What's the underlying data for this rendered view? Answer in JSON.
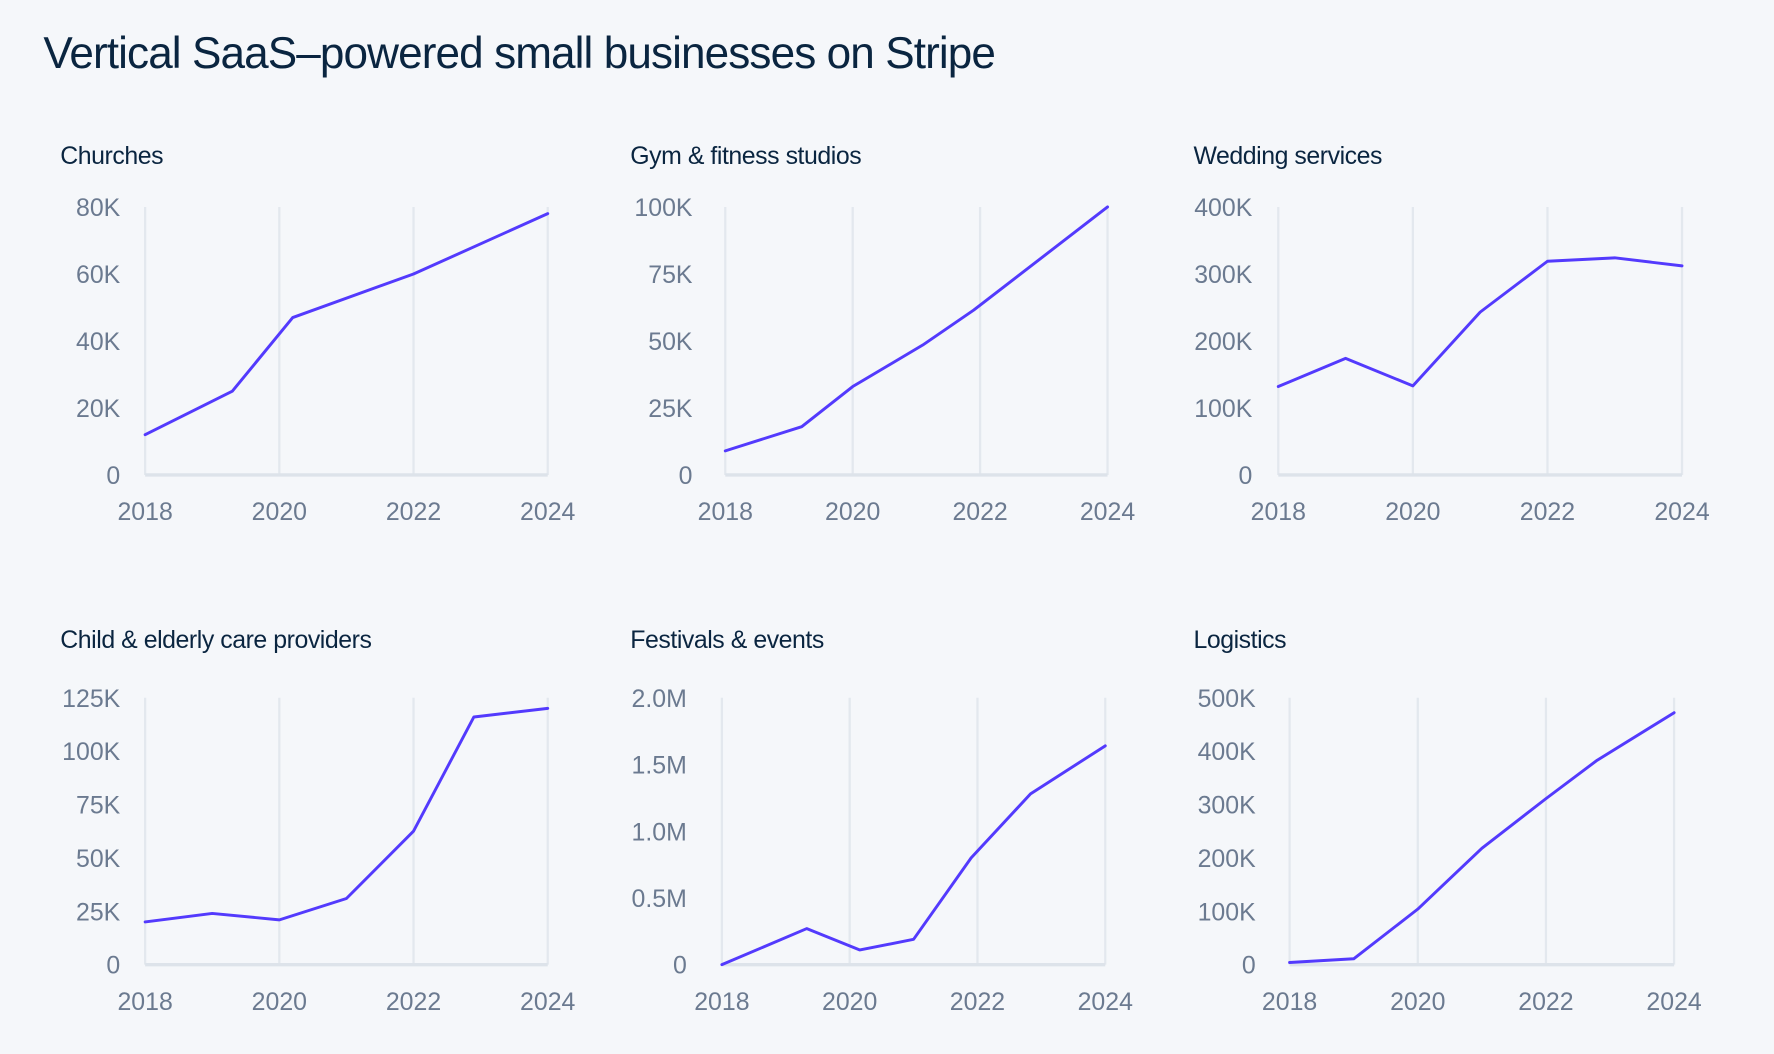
{
  "title": "Vertical SaaS–powered small businesses on Stripe",
  "colors": {
    "background": "#f5f7fa",
    "line": "#533afd",
    "grid": "#e3e8ee",
    "title": "#0a2540",
    "tick": "#6b7a90"
  },
  "chart_data": [
    {
      "type": "line",
      "title": "Churches",
      "xlim": [
        2018,
        2024
      ],
      "ylim": [
        0,
        80000
      ],
      "xticks": [
        2018,
        2020,
        2022,
        2024
      ],
      "xtick_labels": [
        "2018",
        "2020",
        "2022",
        "2024"
      ],
      "yticks": [
        0,
        20000,
        40000,
        60000,
        80000
      ],
      "ytick_labels": [
        "0",
        "20K",
        "40K",
        "60K",
        "80K"
      ],
      "grid": "vertical",
      "x": [
        2018,
        2019.3,
        2020.2,
        2022,
        2024
      ],
      "y": [
        12000,
        25000,
        47000,
        60000,
        78000
      ]
    },
    {
      "type": "line",
      "title": "Gym & fitness studios",
      "xlim": [
        2018,
        2024
      ],
      "ylim": [
        0,
        100000
      ],
      "xticks": [
        2018,
        2020,
        2022,
        2024
      ],
      "xtick_labels": [
        "2018",
        "2020",
        "2022",
        "2024"
      ],
      "yticks": [
        0,
        25000,
        50000,
        75000,
        100000
      ],
      "ytick_labels": [
        "0",
        "25K",
        "50K",
        "75K",
        "100K"
      ],
      "grid": "vertical",
      "x": [
        2018,
        2019.2,
        2020,
        2021.1,
        2021.9,
        2024
      ],
      "y": [
        9000,
        18000,
        33000,
        48500,
        61500,
        100000
      ]
    },
    {
      "type": "line",
      "title": "Wedding services",
      "xlim": [
        2018,
        2024
      ],
      "ylim": [
        0,
        400000
      ],
      "xticks": [
        2018,
        2020,
        2022,
        2024
      ],
      "xtick_labels": [
        "2018",
        "2020",
        "2022",
        "2024"
      ],
      "yticks": [
        0,
        100000,
        200000,
        300000,
        400000
      ],
      "ytick_labels": [
        "0",
        "100K",
        "200K",
        "300K",
        "400K"
      ],
      "grid": "vertical",
      "x": [
        2018,
        2019,
        2020,
        2021,
        2022,
        2023,
        2024
      ],
      "y": [
        132000,
        174000,
        133000,
        243000,
        319000,
        324000,
        312000
      ]
    },
    {
      "type": "line",
      "title": "Child & elderly care providers",
      "xlim": [
        2018,
        2024
      ],
      "ylim": [
        0,
        125000
      ],
      "xticks": [
        2018,
        2020,
        2022,
        2024
      ],
      "xtick_labels": [
        "2018",
        "2020",
        "2022",
        "2024"
      ],
      "yticks": [
        0,
        25000,
        50000,
        75000,
        100000,
        125000
      ],
      "ytick_labels": [
        "0",
        "25K",
        "50K",
        "75K",
        "100K",
        "125K"
      ],
      "grid": "vertical",
      "x": [
        2018,
        2019,
        2020,
        2021,
        2022,
        2022.9,
        2024
      ],
      "y": [
        20000,
        24000,
        21000,
        31000,
        62500,
        116000,
        120000
      ]
    },
    {
      "type": "line",
      "title": "Festivals & events",
      "xlim": [
        2018,
        2024
      ],
      "ylim": [
        0,
        2000000
      ],
      "xticks": [
        2018,
        2020,
        2022,
        2024
      ],
      "xtick_labels": [
        "2018",
        "2020",
        "2022",
        "2024"
      ],
      "yticks": [
        0,
        500000,
        1000000,
        1500000,
        2000000
      ],
      "ytick_labels": [
        "0",
        "0.5M",
        "1.0M",
        "1.5M",
        "2.0M"
      ],
      "grid": "vertical",
      "x": [
        2018,
        2019.33,
        2020.16,
        2021,
        2021.9,
        2022.83,
        2024
      ],
      "y": [
        0,
        270000,
        110000,
        190000,
        800000,
        1280000,
        1640000
      ]
    },
    {
      "type": "line",
      "title": "Logistics",
      "xlim": [
        2018,
        2024
      ],
      "ylim": [
        0,
        500000
      ],
      "xticks": [
        2018,
        2020,
        2022,
        2024
      ],
      "xtick_labels": [
        "2018",
        "2020",
        "2022",
        "2024"
      ],
      "yticks": [
        0,
        100000,
        200000,
        300000,
        400000,
        500000
      ],
      "ytick_labels": [
        "0",
        "100K",
        "200K",
        "300K",
        "400K",
        "500K"
      ],
      "grid": "vertical",
      "x": [
        2018,
        2019,
        2020,
        2021,
        2022,
        2022.8,
        2024
      ],
      "y": [
        4000,
        11000,
        104000,
        218000,
        311000,
        383000,
        472000
      ]
    }
  ]
}
